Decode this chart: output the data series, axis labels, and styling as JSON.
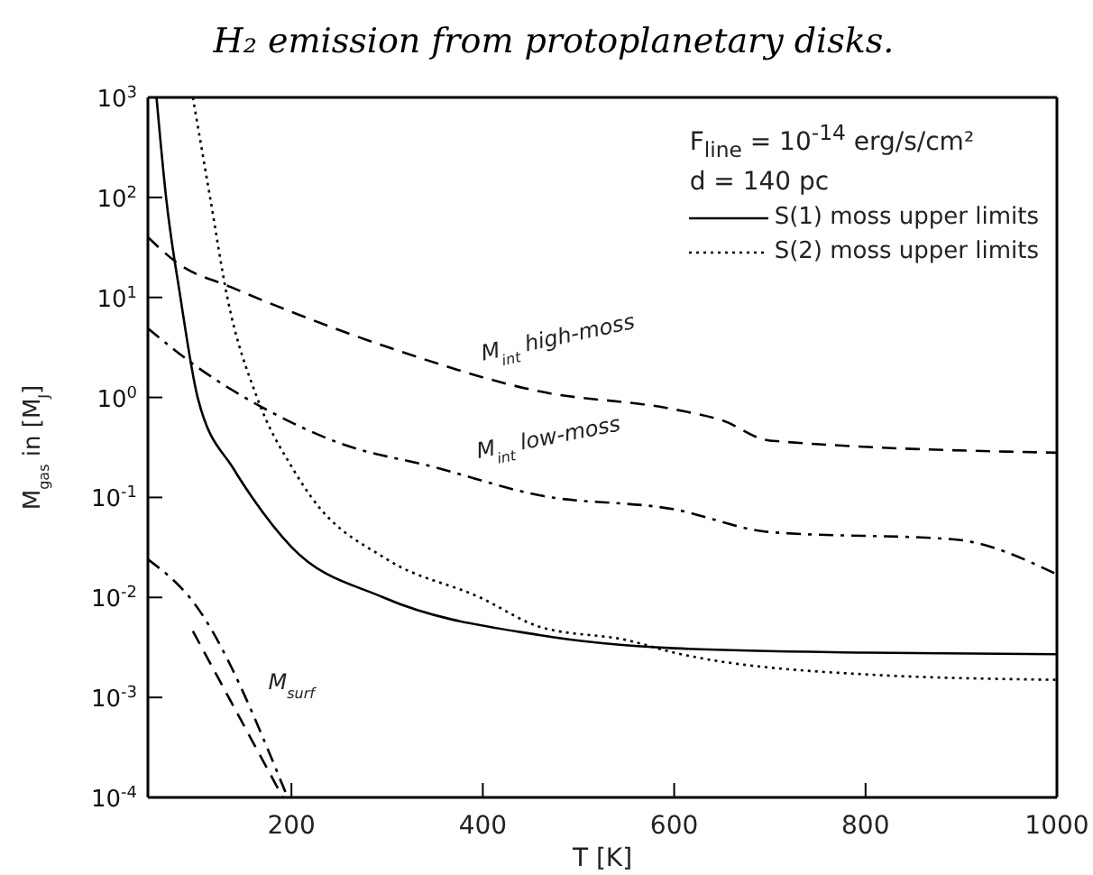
{
  "chart_data": {
    "type": "line",
    "title": "H₂ emission from protoplanetary disks.",
    "xlabel": "T [K]",
    "ylabel": "M$_{gas}$ in [M$_{J}$]",
    "log": "y",
    "grid": false,
    "marker": "none",
    "legend": "top right",
    "xlim": [
      50,
      1000
    ],
    "xticks": [
      200,
      400,
      600,
      800,
      1000
    ],
    "ylim": [
      0.0001,
      1000
    ],
    "yticks": [
      {
        "value": 0.0001,
        "label": "10$^{-4}$"
      },
      {
        "value": 0.001,
        "label": "10$^{-3}$"
      },
      {
        "value": 0.01,
        "label": "10$^{-2}$"
      },
      {
        "value": 0.1,
        "label": "10$^{-1}$"
      },
      {
        "value": 1,
        "label": "10$^{0}$"
      },
      {
        "value": 10,
        "label": "10$^{1}$"
      },
      {
        "value": 100,
        "label": "10$^{2}$"
      },
      {
        "value": 1000,
        "label": "10$^{3}$"
      }
    ],
    "annotations": [
      "F$_{line}$ = 10$^{-14}$ erg/s/cm²",
      "d = 140 pc",
      "M$_{int}$ high-moss",
      "M$_{int}$ low-moss",
      "M$_{surf}$"
    ],
    "series": [
      {
        "name": "S(1) moss upper limits",
        "color": "#000000",
        "line_style": "solid",
        "x": [
          59,
          69,
          84,
          102,
          140,
          159,
          200,
          296,
          459,
          600,
          800,
          1000
        ],
        "values": [
          1000,
          100,
          10,
          1,
          0.19,
          0.1,
          0.032,
          0.01,
          0.0042,
          0.0031,
          0.0028,
          0.0027
        ]
      },
      {
        "name": "S(2) moss upper limits",
        "color": "#000000",
        "line_style": "dotted",
        "x": [
          97,
          115,
          133,
          164,
          202,
          221,
          300,
          397,
          459,
          553,
          600,
          800,
          1000
        ],
        "values": [
          1000,
          100,
          10,
          1,
          0.19,
          0.1,
          0.024,
          0.01,
          0.0051,
          0.0037,
          0.0028,
          0.0017,
          0.0015
        ]
      },
      {
        "color": "#000000",
        "line_style": "dashed",
        "x": [
          50,
          84,
          134,
          300,
          459,
          600,
          650,
          700,
          1000
        ],
        "values": [
          40,
          21,
          13,
          3.2,
          1.15,
          0.76,
          0.59,
          0.37,
          0.28
        ]
      },
      {
        "color": "#000000",
        "line_style": "dashdot",
        "x": [
          50,
          102,
          178,
          250,
          350,
          459,
          600,
          700,
          893,
          1000
        ],
        "values": [
          4.9,
          2.0,
          0.72,
          0.35,
          0.2,
          0.105,
          0.076,
          0.045,
          0.038,
          0.017
        ]
      },
      {
        "color": "#000000",
        "line_style": "dashdot",
        "x": [
          50,
          97,
          196
        ],
        "values": [
          0.024,
          0.0091,
          0.0001
        ]
      },
      {
        "color": "#000000",
        "line_style": "dashed",
        "x": [
          97,
          191
        ],
        "values": [
          0.0046,
          0.0001
        ]
      }
    ]
  }
}
